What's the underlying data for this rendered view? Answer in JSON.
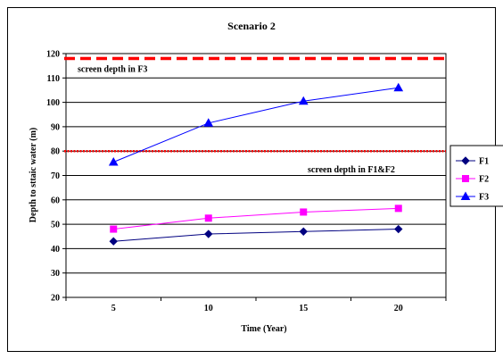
{
  "chart_data": {
    "type": "line",
    "title": "Scenario 2",
    "xlabel": "Time (Year)",
    "ylabel": "Depth to sttaic water (m)",
    "categories": [
      "5",
      "10",
      "15",
      "20"
    ],
    "ylim": [
      20,
      120
    ],
    "yticks": [
      20,
      30,
      40,
      50,
      60,
      70,
      80,
      90,
      100,
      110,
      120
    ],
    "grid": true,
    "legend_position": "right",
    "series": [
      {
        "name": "F1",
        "values": [
          43,
          46,
          47,
          48
        ],
        "color": "#000080",
        "marker": "diamond"
      },
      {
        "name": "F2",
        "values": [
          48,
          52.5,
          55,
          56.5
        ],
        "color": "#FF00FF",
        "marker": "square"
      },
      {
        "name": "F3",
        "values": [
          75.5,
          91.5,
          100.5,
          106
        ],
        "color": "#0000FF",
        "marker": "triangle"
      }
    ],
    "reference_lines": [
      {
        "value": 118,
        "label": "screen depth in F3",
        "color": "#FF0000",
        "style": "dashed"
      },
      {
        "value": 80,
        "label": "screen depth in F1&F2",
        "color": "#FF0000",
        "style": "dotted"
      }
    ]
  }
}
